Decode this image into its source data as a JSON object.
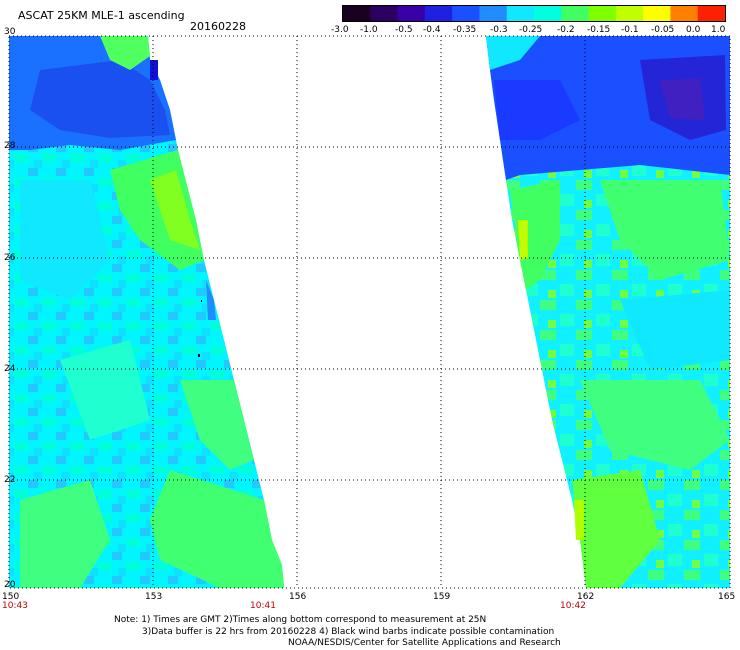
{
  "header": {
    "title": "ASCAT 25KM MLE-1 ascending",
    "date": "20160228"
  },
  "colorbar": {
    "labels": [
      "-3.0",
      "-1.0",
      "-0.5",
      "-0.4",
      "-0.35",
      "-0.3",
      "-0.25",
      "-0.2",
      "-0.15",
      "-0.1",
      "-0.05",
      "0.0",
      "1.0"
    ],
    "colors": [
      "#1a0020",
      "#2b0060",
      "#3a00a8",
      "#2020e0",
      "#1a50ff",
      "#1f8dff",
      "#10e8ff",
      "#00ffe0",
      "#40ff60",
      "#80ff00",
      "#c0ff00",
      "#ffff00",
      "#ff8000",
      "#ff2000"
    ]
  },
  "axes": {
    "lat_labels": [
      "30",
      "28",
      "26",
      "24",
      "22",
      "20"
    ],
    "lon_labels": [
      "150",
      "153",
      "156",
      "159",
      "162",
      "165"
    ],
    "time_labels": [
      "10:43",
      "10:41",
      "10:42"
    ]
  },
  "notes": {
    "line1": "Note: 1) Times are GMT 2)Times along bottom correspond to measurement at 25N",
    "line2": "3)Data buffer is 22 hrs from 20160228 4) Black wind barbs indicate possible contamination",
    "line3": "NOAA/NESDIS/Center for Satellite Applications and Research"
  }
}
